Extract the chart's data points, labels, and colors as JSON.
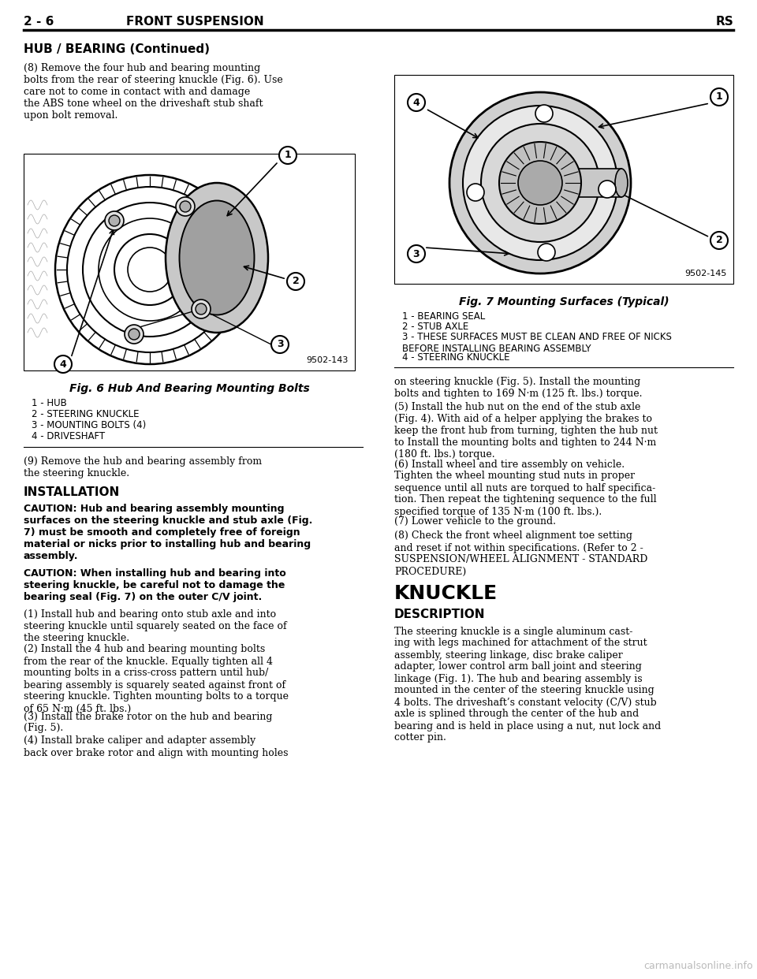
{
  "page_title_left": "2 - 6",
  "page_title_center": "FRONT SUSPENSION",
  "page_title_right": "RS",
  "section_title": "HUB / BEARING (Continued)",
  "para8": "(8) Remove the four hub and bearing mounting\nbolts from the rear of steering knuckle (Fig. 6). Use\ncare not to come in contact with and damage\nthe ABS tone wheel on the driveshaft stub shaft\nupon bolt removal.",
  "para9": "(9) Remove the hub and bearing assembly from\nthe steering knuckle.",
  "installation_header": "INSTALLATION",
  "caution1": "CAUTION: Hub and bearing assembly mounting\nsurfaces on the steering knuckle and stub axle (Fig.\n7) must be smooth and completely free of foreign\nmaterial or nicks prior to installing hub and bearing\nassembly.",
  "caution2": "CAUTION: When installing hub and bearing into\nsteering knuckle, be careful not to damage the\nbearing seal (Fig. 7) on the outer C/V joint.",
  "install_steps": [
    "(1) Install hub and bearing onto stub axle and into\nsteering knuckle until squarely seated on the face of\nthe steering knuckle.",
    "(2) Install the 4 hub and bearing mounting bolts\nfrom the rear of the knuckle. Equally tighten all 4\nmounting bolts in a criss-cross pattern until hub/\nbearing assembly is squarely seated against front of\nsteering knuckle. Tighten mounting bolts to a torque\nof 65 N·m (45 ft. lbs.)",
    "(3) Install the brake rotor on the hub and bearing\n(Fig. 5).",
    "(4) Install brake caliper and adapter assembly\nback over brake rotor and align with mounting holes"
  ],
  "right_col_text": [
    "on steering knuckle (Fig. 5). Install the mounting\nbolts and tighten to 169 N·m (125 ft. lbs.) torque.",
    "(5) Install the hub nut on the end of the stub axle\n(Fig. 4). With aid of a helper applying the brakes to\nkeep the front hub from turning, tighten the hub nut\nto Install the mounting bolts and tighten to 244 N·m\n(180 ft. lbs.) torque.",
    "(6) Install wheel and tire assembly on vehicle.\nTighten the wheel mounting stud nuts in proper\nsequence until all nuts are torqued to half specifica-\ntion. Then repeat the tightening sequence to the full\nspecified torque of 135 N·m (100 ft. lbs.).",
    "(7) Lower vehicle to the ground.",
    "(8) Check the front wheel alignment toe setting\nand reset if not within specifications. (Refer to 2 -\nSUSPENSION/WHEEL ALIGNMENT - STANDARD\nPROCEDURE)"
  ],
  "knuckle_header": "KNUCKLE",
  "description_header": "DESCRIPTION",
  "description_text": "The steering knuckle is a single aluminum cast-\ning with legs machined for attachment of the strut\nassembly, steering linkage, disc brake caliper\nadapter, lower control arm ball joint and steering\nlinkage (Fig. 1). The hub and bearing assembly is\nmounted in the center of the steering knuckle using\n4 bolts. The driveshaft’s constant velocity (C/V) stub\naxle is splined through the center of the hub and\nbearing and is held in place using a nut, nut lock and\ncotter pin.",
  "fig6_caption": "Fig. 6 Hub And Bearing Mounting Bolts",
  "fig6_labels": [
    "1 - HUB",
    "2 - STEERING KNUCKLE",
    "3 - MOUNTING BOLTS (4)",
    "4 - DRIVESHAFT"
  ],
  "fig6_code": "9502-143",
  "fig7_caption": "Fig. 7 Mounting Surfaces (Typical)",
  "fig7_labels": [
    "1 - BEARING SEAL",
    "2 - STUB AXLE",
    "3 - THESE SURFACES MUST BE CLEAN AND FREE OF NICKS\nBEFORE INSTALLING BEARING ASSEMBLY",
    "4 - STEERING KNUCKLE"
  ],
  "fig7_code": "9502-145",
  "watermark": "carmanualsonline.info",
  "watermark_color": "#bbbbbb",
  "bg_color": "#ffffff",
  "text_color": "#000000"
}
